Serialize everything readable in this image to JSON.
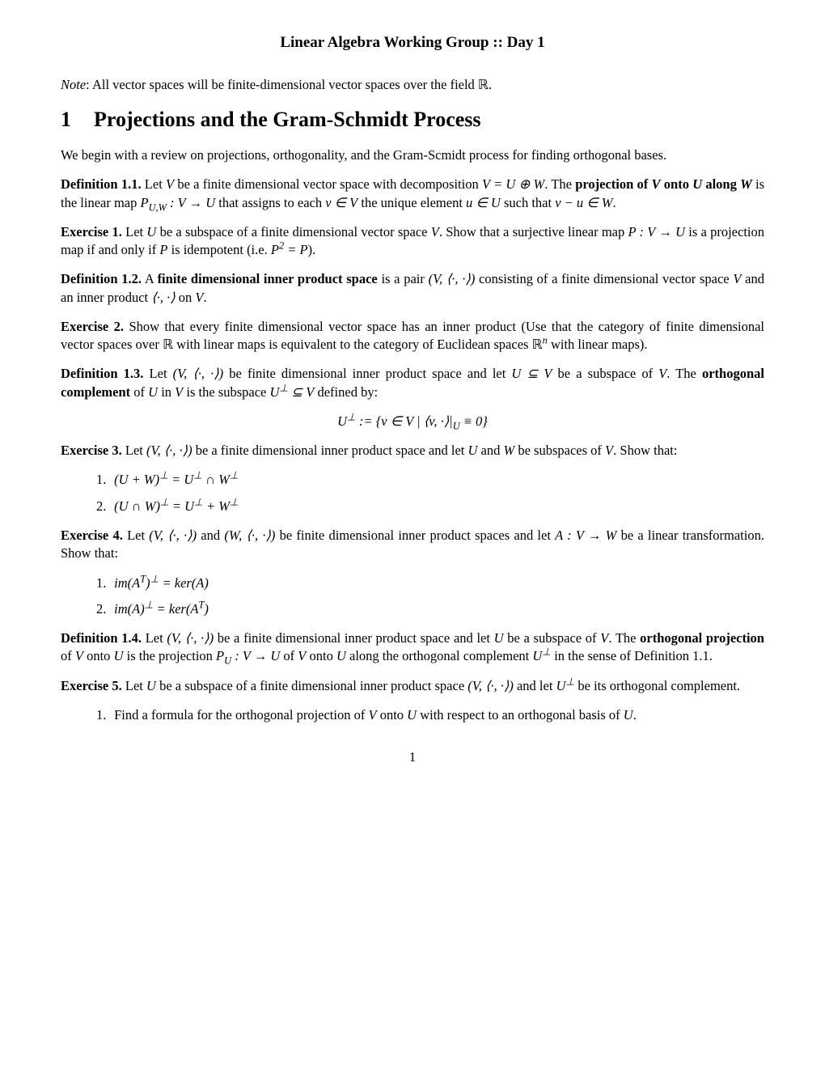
{
  "title": "Linear Algebra Working Group :: Day 1",
  "note_prefix": "Note",
  "note_text": ": All vector spaces will be finite-dimensional vector spaces over the field ℝ.",
  "section": {
    "number": "1",
    "title": "Projections and the Gram-Schmidt Process"
  },
  "intro": "We begin with a review on projections, orthogonality, and the Gram-Scmidt process for finding orthogonal bases.",
  "def11": {
    "label": "Definition 1.1.",
    "text1": " Let ",
    "v": "V",
    "text2": " be a finite dimensional vector space with decomposition ",
    "eq1": "V = U ⊕ W",
    "text3": ". The ",
    "bold1": "projection of ",
    "boldV": "V",
    "bold2": " onto ",
    "boldU": "U",
    "bold3": " along ",
    "boldW": "W",
    "text4": " is the linear map ",
    "eq2": "P",
    "eq2sub": "U,W",
    "eq2b": " : V → U",
    "text5": " that assigns to each ",
    "eq3": "v ∈ V",
    "text6": " the unique element ",
    "eq4": "u ∈ U",
    "text7": " such that ",
    "eq5": "v − u ∈ W",
    "text8": "."
  },
  "ex1": {
    "label": "Exercise 1.",
    "text1": " Let ",
    "u": "U",
    "text2": " be a subspace of a finite dimensional vector space ",
    "v": "V",
    "text3": ". Show that a surjective linear map ",
    "eq1": "P : V → U",
    "text4": " is a projection map if and only if ",
    "p": "P",
    "text5": " is idempotent (i.e. ",
    "eq2": "P",
    "sup2": "2",
    "eq2b": " = P",
    "text6": ")."
  },
  "def12": {
    "label": "Definition 1.2.",
    "text1": " A ",
    "bold1": "finite dimensional inner product space",
    "text2": " is a pair ",
    "eq1": "(V, ⟨·, ·⟩)",
    "text3": " consisting of a finite dimensional vector space ",
    "v": "V",
    "text4": " and an inner product ",
    "eq2": "⟨·, ·⟩",
    "text5": " on ",
    "v2": "V",
    "text6": "."
  },
  "ex2": {
    "label": "Exercise 2.",
    "text1": " Show that every finite dimensional vector space has an inner product (Use that the category of finite dimensional vector spaces over ℝ with linear maps is equivalent to the category of Euclidean spaces ℝ",
    "sup": "n",
    "text2": " with linear maps)."
  },
  "def13": {
    "label": "Definition 1.3.",
    "text1": " Let ",
    "eq1": "(V, ⟨·, ·⟩)",
    "text2": " be finite dimensional inner product space and let ",
    "eq2": "U ⊆ V",
    "text3": " be a subspace of ",
    "v": "V",
    "text4": ". The ",
    "bold1": "orthogonal complement",
    "text5": " of ",
    "u": "U",
    "text6": " in ",
    "v2": "V",
    "text7": " is the subspace ",
    "eq3": "U",
    "sup3": "⊥",
    "eq3b": " ⊆ V",
    "text8": " defined by:"
  },
  "displaymath1": "U",
  "displaymath1sup": "⊥",
  "displaymath1b": " := {v ∈ V | ⟨v, ·⟩|",
  "displaymath1sub": "U",
  "displaymath1c": " ≡ 0}",
  "ex3": {
    "label": "Exercise 3.",
    "text1": " Let ",
    "eq1": "(V, ⟨·, ·⟩)",
    "text2": " be a finite dimensional inner product space and let ",
    "u": "U",
    "text3": " and ",
    "w": "W",
    "text4": " be subspaces of ",
    "v": "V",
    "text5": ". Show that:",
    "item1num": "1.",
    "item1": "(U + W)",
    "item1sup": "⊥",
    "item1b": " = U",
    "item1sup2": "⊥",
    "item1c": " ∩ W",
    "item1sup3": "⊥",
    "item2num": "2.",
    "item2": "(U ∩ W)",
    "item2sup": "⊥",
    "item2b": " = U",
    "item2sup2": "⊥",
    "item2c": " + W",
    "item2sup3": "⊥"
  },
  "ex4": {
    "label": "Exercise 4.",
    "text1": " Let ",
    "eq1": "(V, ⟨·, ·⟩)",
    "text2": " and ",
    "eq2": "(W, ⟨·, ·⟩)",
    "text3": " be finite dimensional inner product spaces and let ",
    "eq3": "A : V → W",
    "text4": " be a linear transformation. Show that:",
    "item1num": "1.",
    "item1a": "im(A",
    "item1supT": "T",
    "item1b": ")",
    "item1supP": "⊥",
    "item1c": " = ker(A)",
    "item2num": "2.",
    "item2a": "im(A)",
    "item2supP": "⊥",
    "item2b": " = ker(A",
    "item2supT": "T",
    "item2c": ")"
  },
  "def14": {
    "label": "Definition 1.4.",
    "text1": " Let ",
    "eq1": "(V, ⟨·, ·⟩)",
    "text2": " be a finite dimensional inner product space and let ",
    "u": "U",
    "text3": " be a subspace of ",
    "v": "V",
    "text4": ". The ",
    "bold1": "orthogonal projection",
    "text5": " of ",
    "v2": "V",
    "text6": " onto ",
    "u2": "U",
    "text7": " is the projection ",
    "eq2": "P",
    "eq2sub": "U",
    "eq2b": " : V → U",
    "text8": " of ",
    "v3": "V",
    "text9": " onto ",
    "u3": "U",
    "text10": " along the orthogonal complement ",
    "eq3": "U",
    "sup3": "⊥",
    "text11": " in the sense of Definition 1.1."
  },
  "ex5": {
    "label": "Exercise 5.",
    "text1": " Let ",
    "u": "U",
    "text2": " be a subspace of a finite dimensional inner product space ",
    "eq1": "(V, ⟨·, ·⟩)",
    "text3": " and let ",
    "eq2": "U",
    "sup2": "⊥",
    "text4": " be its orthogonal complement.",
    "item1num": "1.",
    "item1text1": "Find a formula for the orthogonal projection of ",
    "item1v": "V",
    "item1text2": " onto ",
    "item1u": "U",
    "item1text3": " with respect to an orthogonal basis of ",
    "item1u2": "U",
    "item1text4": "."
  },
  "pagenum": "1"
}
